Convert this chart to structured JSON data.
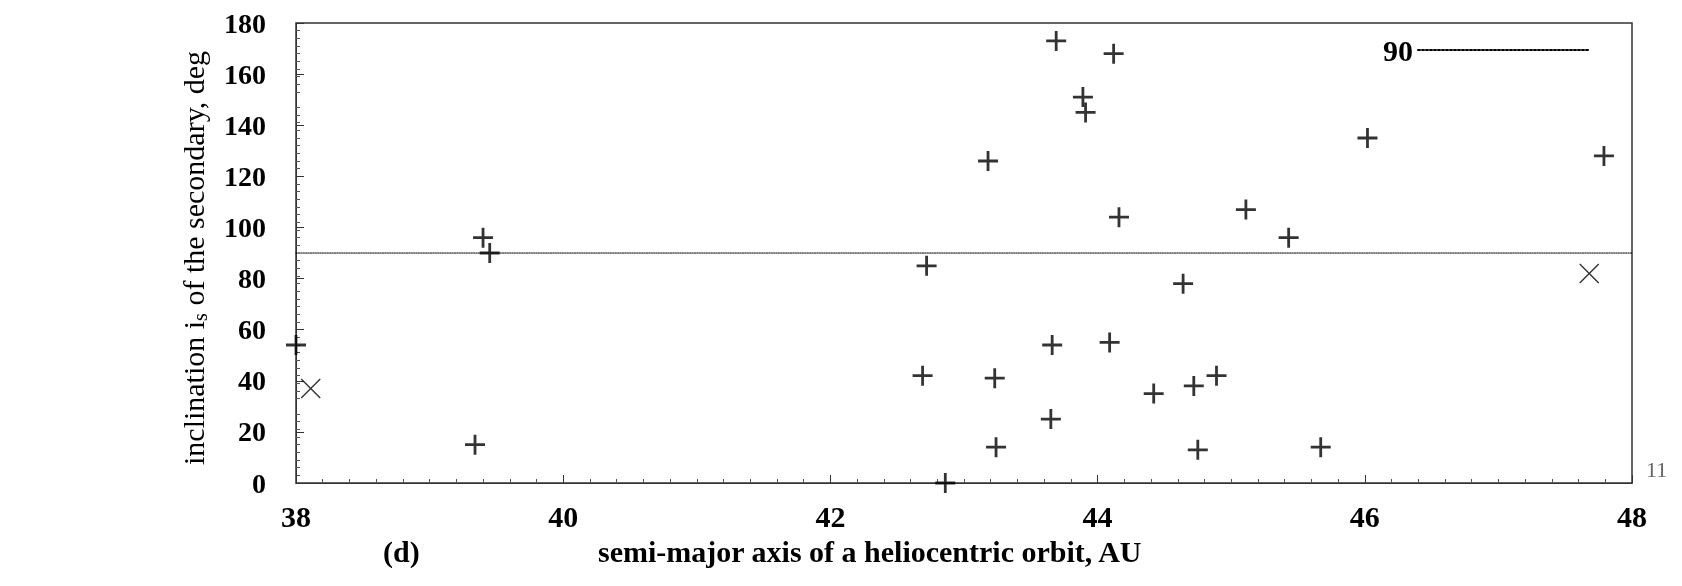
{
  "chart_data": {
    "type": "scatter",
    "xlabel": "semi-major axis of a heliocentric orbit, AU",
    "ylabel": "inclination i$_{s}$ of the secondary, deg",
    "annotations": [
      "(d)",
      "11"
    ],
    "xlim": [
      38,
      48
    ],
    "xticks": [
      38,
      40,
      42,
      44,
      46,
      48
    ],
    "ylim": [
      0,
      180
    ],
    "yticks": [
      0,
      20,
      40,
      60,
      80,
      100,
      120,
      140,
      160,
      180
    ],
    "grid": false,
    "legend": "top right",
    "series": [
      {
        "color": "#000000",
        "marker": "cross",
        "x": [
          38.0,
          39.4,
          39.45,
          39.34,
          43.69,
          44.12,
          43.89,
          43.91,
          43.18,
          44.16,
          45.11,
          42.72,
          44.64,
          43.66,
          44.09,
          42.69,
          43.23,
          44.42,
          44.72,
          44.89,
          43.65,
          43.24,
          44.75,
          42.86,
          45.43,
          46.02,
          47.79,
          45.67
        ],
        "values": [
          54,
          96,
          90,
          15,
          173,
          168,
          151,
          145,
          126,
          104,
          107,
          85,
          78,
          54,
          55,
          42,
          41,
          35,
          38,
          42,
          25,
          14,
          13,
          0,
          96,
          135,
          128,
          14
        ]
      },
      {
        "color": "#000000",
        "marker": "x",
        "x": [
          38.11,
          47.68
        ],
        "values": [
          37,
          82
        ]
      },
      {
        "name": "90",
        "type": "line",
        "color": "#000000",
        "line_style": "dotted",
        "marker": "none",
        "x": [
          38,
          48
        ],
        "values": [
          90,
          90
        ]
      }
    ]
  }
}
